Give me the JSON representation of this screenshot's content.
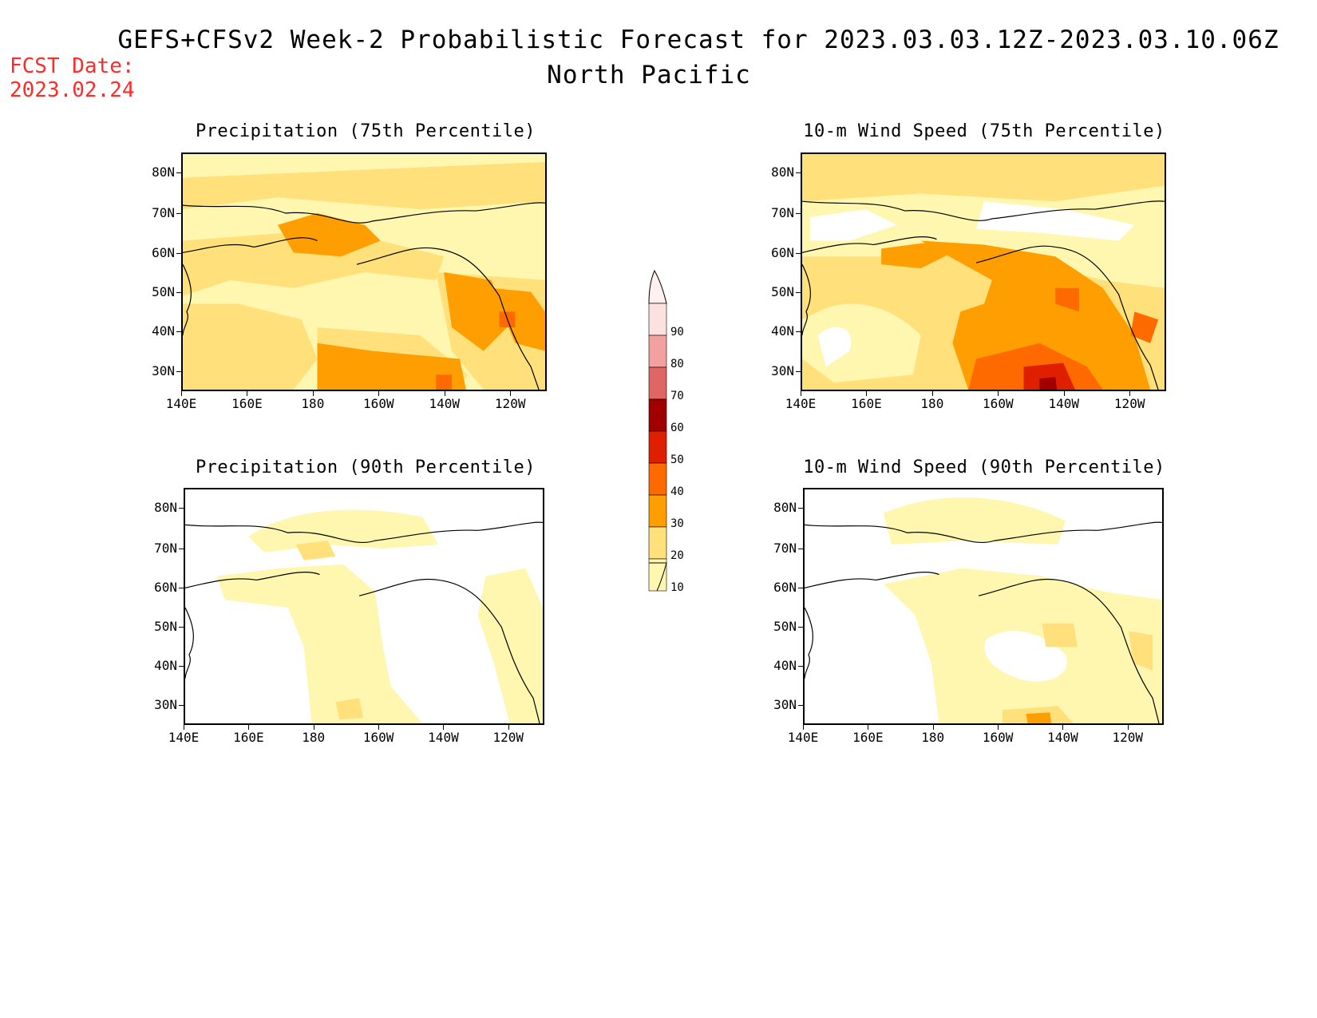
{
  "header": {
    "title": "GEFS+CFSv2 Week-2 Probabilistic Forecast for 2023.03.03.12Z-2023.03.10.06Z",
    "subtitle": "North Pacific",
    "fcst_label": "FCST Date:",
    "fcst_date": "2023.02.24"
  },
  "panels": [
    {
      "id": "p75",
      "title": "Precipitation (75th Percentile)"
    },
    {
      "id": "w75",
      "title": "10-m Wind Speed (75th Percentile)"
    },
    {
      "id": "p90",
      "title": "Precipitation (90th Percentile)"
    },
    {
      "id": "w90",
      "title": "10-m Wind Speed (90th Percentile)"
    }
  ],
  "axes": {
    "lat_labels": [
      "80N",
      "70N",
      "60N",
      "50N",
      "40N",
      "30N"
    ],
    "lon_labels": [
      "140E",
      "160E",
      "180",
      "160W",
      "140W",
      "120W"
    ]
  },
  "colorbar": {
    "labels": [
      "90",
      "80",
      "70",
      "60",
      "50",
      "40",
      "30",
      "20",
      "10"
    ],
    "colors": [
      "#fde0e0",
      "#f2a0a0",
      "#e06666",
      "#a00000",
      "#e01e00",
      "#ff6a00",
      "#ff9e00",
      "#ffe07a",
      "#fff6b0"
    ]
  }
}
